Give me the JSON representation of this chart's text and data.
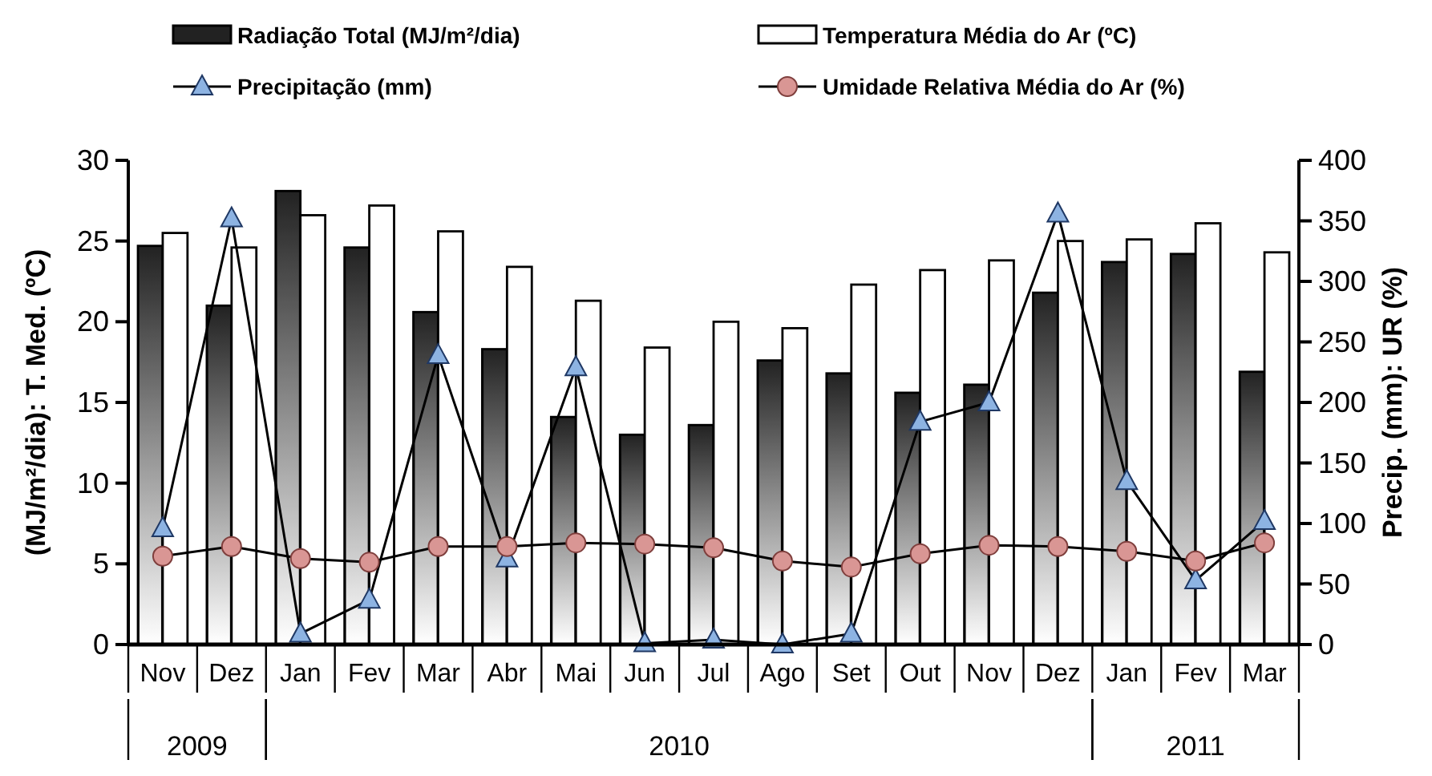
{
  "chart_data": {
    "type": "bar",
    "ylabel": "(MJ/m²/dia): T. Med. (ºC)",
    "y2label": "Precip. (mm): UR (%)",
    "categories": [
      "Nov",
      "Dez",
      "Jan",
      "Fev",
      "Mar",
      "Abr",
      "Mai",
      "Jun",
      "Jul",
      "Ago",
      "Set",
      "Out",
      "Nov",
      "Dez",
      "Jan",
      "Fev",
      "Mar"
    ],
    "series": [
      {
        "name": "Radiação Total (MJ/m²/dia)",
        "color": "#222222",
        "values": [
          24.7,
          21,
          28.1,
          24.6,
          20.6,
          18.3,
          14.1,
          13,
          13.6,
          17.6,
          16.8,
          15.6,
          16.1,
          21.8,
          23.7,
          24.2,
          16.9
        ]
      },
      {
        "name": "Temperatura Média do Ar (ºC)",
        "color": "#ffffff",
        "values": [
          25.5,
          24.6,
          26.6,
          27.2,
          25.6,
          23.4,
          21.3,
          18.4,
          20,
          19.6,
          22.3,
          23.2,
          23.8,
          25,
          25.1,
          26.1,
          24.3
        ]
      },
      {
        "name": "Precipitação (mm)",
        "type": "line",
        "axis": "y2",
        "marker": "triangle",
        "color": "#8db3e2",
        "values": [
          96,
          352,
          9,
          37,
          239,
          71,
          229,
          1,
          4,
          0,
          9,
          184,
          200,
          356,
          135,
          53,
          102
        ]
      },
      {
        "name": "Umidade Relativa Média do Ar (%)",
        "type": "line",
        "axis": "y2",
        "marker": "circle",
        "color": "#d99694",
        "values": [
          73,
          81,
          71,
          68,
          81,
          81,
          84,
          83,
          80,
          69,
          64,
          75,
          82,
          81,
          77,
          69,
          84
        ]
      }
    ],
    "ylim": [
      0,
      30
    ],
    "yticks": [
      0,
      5,
      10,
      15,
      20,
      25,
      30
    ],
    "y2lim": [
      0,
      400
    ],
    "y2ticks": [
      0,
      50,
      100,
      150,
      200,
      250,
      300,
      350,
      400
    ],
    "legend": "top",
    "grid": false,
    "annotations": [
      "2009",
      "2010",
      "2011"
    ]
  }
}
